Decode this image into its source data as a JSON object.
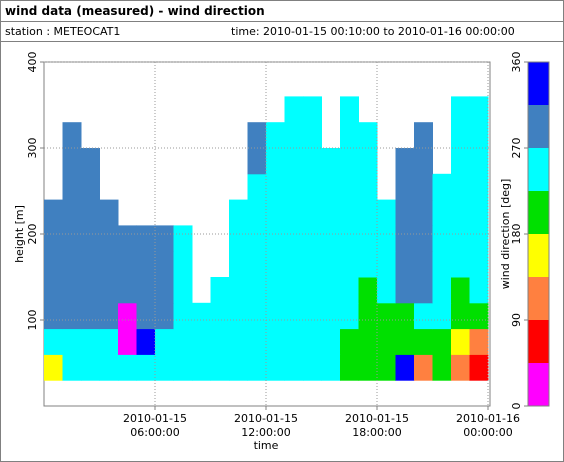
{
  "chart_data": {
    "type": "heatmap",
    "title": "wind data (measured) - wind direction",
    "station": "station : METEOCAT1",
    "time_range": "time: 2010-01-15 00:10:00 to 2010-01-16 00:00:00",
    "x_label": "time",
    "y_label": "height [m]",
    "xlim": [
      0,
      24
    ],
    "ylim": [
      0,
      400
    ],
    "xticks": [
      {
        "value": 6,
        "label": "2010-01-15 06:00:00"
      },
      {
        "value": 12,
        "label": "2010-01-15 12:00:00"
      },
      {
        "value": 18,
        "label": "2010-01-15 18:00:00"
      },
      {
        "value": 24,
        "label": "2010-01-16 00:00:00"
      }
    ],
    "yticks": [
      100,
      200,
      300,
      400
    ],
    "grid": true,
    "xbins": [
      0,
      1,
      2,
      3,
      4,
      5,
      6,
      7,
      8,
      9,
      10,
      11,
      12,
      13,
      14,
      15,
      16,
      17,
      18,
      19,
      20,
      21,
      22,
      23,
      24
    ],
    "ybins": [
      30,
      60,
      90,
      120,
      150,
      180,
      210,
      240,
      270,
      300,
      330,
      360
    ],
    "z": [
      [
        160,
        250,
        250,
        250,
        250,
        250,
        250,
        250,
        250,
        250,
        250,
        250,
        250,
        250,
        250,
        250,
        200,
        200,
        200,
        330,
        110,
        200,
        110,
        70
      ],
      [
        250,
        250,
        250,
        250,
        20,
        330,
        250,
        250,
        250,
        250,
        250,
        250,
        250,
        250,
        250,
        250,
        200,
        200,
        200,
        200,
        200,
        200,
        160,
        110
      ],
      [
        290,
        290,
        290,
        290,
        20,
        290,
        290,
        250,
        250,
        250,
        250,
        250,
        250,
        250,
        250,
        250,
        250,
        200,
        200,
        200,
        250,
        250,
        200,
        200
      ],
      [
        290,
        290,
        290,
        290,
        290,
        290,
        290,
        250,
        null,
        250,
        250,
        250,
        250,
        250,
        250,
        250,
        250,
        200,
        250,
        290,
        290,
        250,
        200,
        250
      ],
      [
        290,
        290,
        290,
        290,
        290,
        290,
        290,
        250,
        null,
        null,
        250,
        250,
        250,
        250,
        250,
        250,
        250,
        250,
        250,
        290,
        290,
        250,
        250,
        250
      ],
      [
        290,
        290,
        290,
        290,
        290,
        290,
        290,
        250,
        null,
        null,
        250,
        250,
        250,
        250,
        250,
        250,
        250,
        250,
        250,
        290,
        290,
        250,
        250,
        250
      ],
      [
        290,
        290,
        290,
        290,
        null,
        null,
        null,
        null,
        null,
        null,
        250,
        250,
        250,
        250,
        250,
        250,
        250,
        250,
        250,
        290,
        290,
        250,
        250,
        250
      ],
      [
        null,
        290,
        290,
        null,
        null,
        null,
        null,
        null,
        null,
        null,
        null,
        250,
        250,
        250,
        250,
        250,
        250,
        250,
        null,
        290,
        290,
        250,
        250,
        250
      ],
      [
        null,
        290,
        290,
        null,
        null,
        null,
        null,
        null,
        null,
        null,
        null,
        290,
        250,
        250,
        250,
        250,
        250,
        250,
        null,
        290,
        290,
        null,
        250,
        250
      ],
      [
        null,
        290,
        null,
        null,
        null,
        null,
        null,
        null,
        null,
        null,
        null,
        290,
        250,
        250,
        250,
        null,
        250,
        250,
        null,
        null,
        290,
        null,
        250,
        250
      ],
      [
        null,
        null,
        null,
        null,
        null,
        null,
        null,
        null,
        null,
        null,
        null,
        null,
        null,
        250,
        250,
        null,
        250,
        null,
        null,
        null,
        null,
        null,
        250,
        250
      ]
    ],
    "colorbar": {
      "label": "wind direction [deg]",
      "bounds": [
        0,
        45,
        90,
        135,
        180,
        225,
        270,
        315,
        360
      ],
      "colors": [
        "#ff00ff",
        "#ff0000",
        "#ff8040",
        "#ffff00",
        "#00e000",
        "#00ffff",
        "#4080c0",
        "#0000ff"
      ],
      "ticks": [
        0,
        90,
        180,
        270,
        360
      ]
    }
  }
}
